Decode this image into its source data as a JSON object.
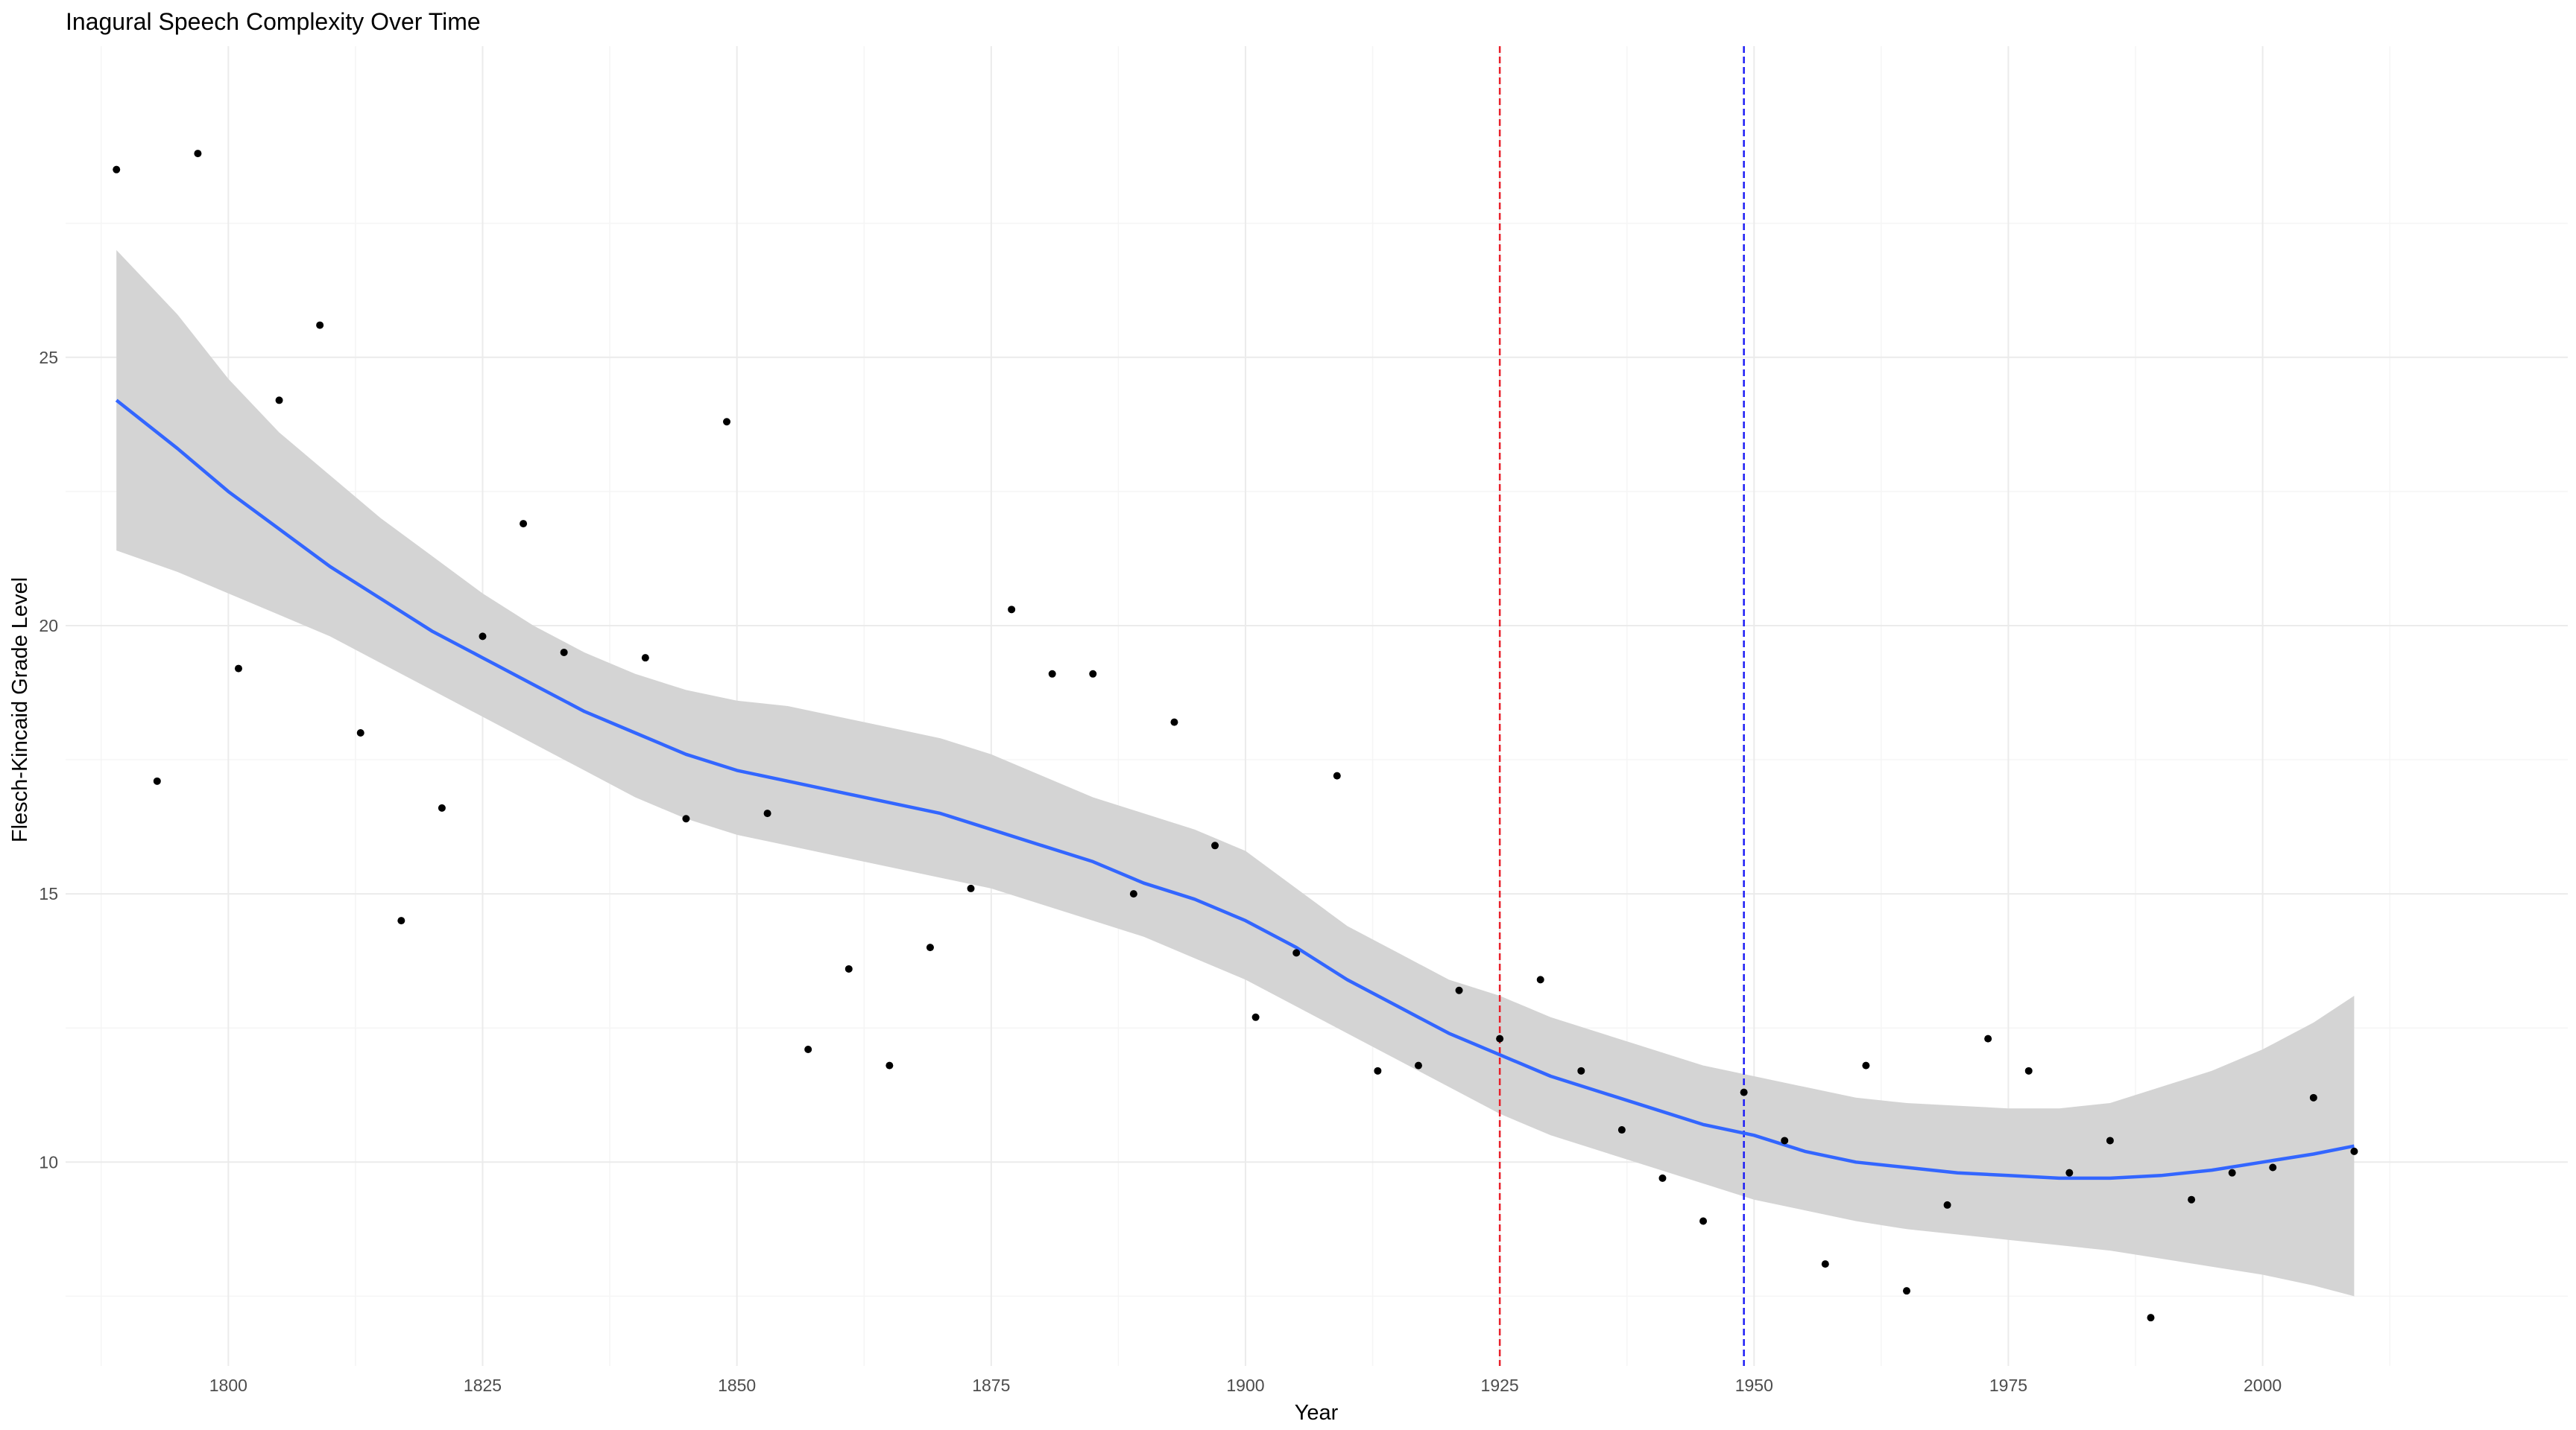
{
  "chart_data": {
    "type": "scatter",
    "title": "Inagural Speech Complexity Over Time",
    "xlabel": "Year",
    "ylabel": "Flesch-Kincaid Grade Level",
    "xlim": [
      1784,
      2030
    ],
    "ylim": [
      6.2,
      30.8
    ],
    "x_ticks": [
      1800,
      1825,
      1850,
      1875,
      1900,
      1925,
      1950,
      1975,
      2000
    ],
    "y_ticks": [
      10,
      15,
      20,
      25
    ],
    "grid": true,
    "points": [
      {
        "x": 1789,
        "y": 28.5
      },
      {
        "x": 1793,
        "y": 17.1
      },
      {
        "x": 1797,
        "y": 28.8
      },
      {
        "x": 1801,
        "y": 19.2
      },
      {
        "x": 1805,
        "y": 24.2
      },
      {
        "x": 1809,
        "y": 25.6
      },
      {
        "x": 1813,
        "y": 18.0
      },
      {
        "x": 1817,
        "y": 14.5
      },
      {
        "x": 1821,
        "y": 16.6
      },
      {
        "x": 1825,
        "y": 19.8
      },
      {
        "x": 1829,
        "y": 21.9
      },
      {
        "x": 1833,
        "y": 19.5
      },
      {
        "x": 1841,
        "y": 19.4
      },
      {
        "x": 1845,
        "y": 16.4
      },
      {
        "x": 1849,
        "y": 23.8
      },
      {
        "x": 1853,
        "y": 16.5
      },
      {
        "x": 1857,
        "y": 12.1
      },
      {
        "x": 1861,
        "y": 13.6
      },
      {
        "x": 1865,
        "y": 11.8
      },
      {
        "x": 1869,
        "y": 14.0
      },
      {
        "x": 1873,
        "y": 15.1
      },
      {
        "x": 1877,
        "y": 20.3
      },
      {
        "x": 1881,
        "y": 19.1
      },
      {
        "x": 1885,
        "y": 19.1
      },
      {
        "x": 1889,
        "y": 15.0
      },
      {
        "x": 1893,
        "y": 18.2
      },
      {
        "x": 1897,
        "y": 15.9
      },
      {
        "x": 1901,
        "y": 12.7
      },
      {
        "x": 1905,
        "y": 13.9
      },
      {
        "x": 1909,
        "y": 17.2
      },
      {
        "x": 1913,
        "y": 11.7
      },
      {
        "x": 1917,
        "y": 11.8
      },
      {
        "x": 1921,
        "y": 13.2
      },
      {
        "x": 1925,
        "y": 12.3
      },
      {
        "x": 1929,
        "y": 13.4
      },
      {
        "x": 1933,
        "y": 11.7
      },
      {
        "x": 1937,
        "y": 10.6
      },
      {
        "x": 1941,
        "y": 9.7
      },
      {
        "x": 1945,
        "y": 8.9
      },
      {
        "x": 1949,
        "y": 11.3
      },
      {
        "x": 1953,
        "y": 10.4
      },
      {
        "x": 1957,
        "y": 8.1
      },
      {
        "x": 1961,
        "y": 11.8
      },
      {
        "x": 1965,
        "y": 7.6
      },
      {
        "x": 1969,
        "y": 9.2
      },
      {
        "x": 1973,
        "y": 12.3
      },
      {
        "x": 1977,
        "y": 11.7
      },
      {
        "x": 1981,
        "y": 9.8
      },
      {
        "x": 1985,
        "y": 10.4
      },
      {
        "x": 1989,
        "y": 7.1
      },
      {
        "x": 1993,
        "y": 9.3
      },
      {
        "x": 1997,
        "y": 9.8
      },
      {
        "x": 2001,
        "y": 9.9
      },
      {
        "x": 2005,
        "y": 11.2
      },
      {
        "x": 2009,
        "y": 10.2
      }
    ],
    "smooth": {
      "x": [
        1789,
        1795,
        1800,
        1805,
        1810,
        1815,
        1820,
        1825,
        1830,
        1835,
        1840,
        1845,
        1850,
        1855,
        1860,
        1865,
        1870,
        1875,
        1880,
        1885,
        1890,
        1895,
        1900,
        1905,
        1910,
        1915,
        1920,
        1925,
        1930,
        1935,
        1940,
        1945,
        1950,
        1955,
        1960,
        1965,
        1970,
        1975,
        1980,
        1985,
        1990,
        1995,
        2000,
        2005,
        2009
      ],
      "y": [
        24.2,
        23.3,
        22.5,
        21.8,
        21.1,
        20.5,
        19.9,
        19.4,
        18.9,
        18.4,
        18.0,
        17.6,
        17.3,
        17.1,
        16.9,
        16.7,
        16.5,
        16.2,
        15.9,
        15.6,
        15.2,
        14.9,
        14.5,
        14.0,
        13.4,
        12.9,
        12.4,
        12.0,
        11.6,
        11.3,
        11.0,
        10.7,
        10.5,
        10.2,
        10.0,
        9.9,
        9.8,
        9.75,
        9.7,
        9.7,
        9.75,
        9.85,
        10.0,
        10.15,
        10.3
      ],
      "ci_low": [
        21.4,
        21.0,
        20.6,
        20.2,
        19.8,
        19.3,
        18.8,
        18.3,
        17.8,
        17.3,
        16.8,
        16.4,
        16.1,
        15.9,
        15.7,
        15.5,
        15.3,
        15.1,
        14.8,
        14.5,
        14.2,
        13.8,
        13.4,
        12.9,
        12.4,
        11.9,
        11.4,
        10.9,
        10.5,
        10.2,
        9.9,
        9.6,
        9.3,
        9.1,
        8.9,
        8.75,
        8.65,
        8.55,
        8.45,
        8.35,
        8.2,
        8.05,
        7.9,
        7.7,
        7.5
      ],
      "ci_high": [
        27.0,
        25.8,
        24.6,
        23.6,
        22.8,
        22.0,
        21.3,
        20.6,
        20.0,
        19.5,
        19.1,
        18.8,
        18.6,
        18.5,
        18.3,
        18.1,
        17.9,
        17.6,
        17.2,
        16.8,
        16.5,
        16.2,
        15.8,
        15.1,
        14.4,
        13.9,
        13.4,
        13.1,
        12.7,
        12.4,
        12.1,
        11.8,
        11.6,
        11.4,
        11.2,
        11.1,
        11.05,
        11.0,
        11.0,
        11.1,
        11.4,
        11.7,
        12.1,
        12.6,
        13.1
      ]
    },
    "vlines": [
      {
        "x": 1925,
        "color": "#e8202a"
      },
      {
        "x": 1949,
        "color": "#1c1cf5"
      }
    ],
    "colors": {
      "point": "#000000",
      "smooth_line": "#3366ff",
      "ribbon": "#d4d4d4",
      "grid_major": "#ebebeb",
      "grid_minor": "#f5f5f5"
    }
  }
}
